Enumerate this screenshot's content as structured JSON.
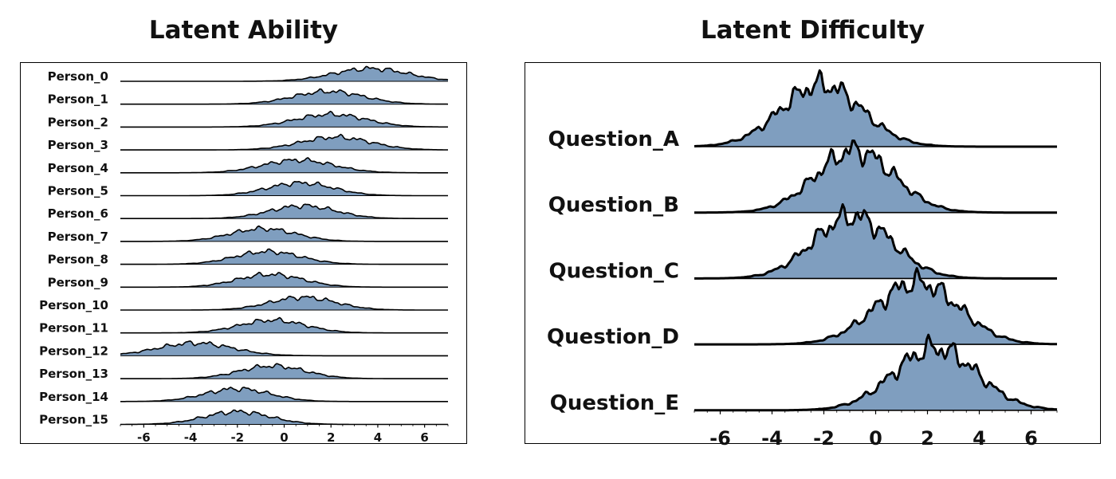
{
  "charts": {
    "left_title": "Latent Ability",
    "right_title": "Latent Difficulty"
  },
  "fill_color": "#7f9ebf",
  "line_color": "#000000",
  "chart_data": [
    {
      "type": "area",
      "subtype": "ridgeline",
      "title": "Latent Ability",
      "xlim": [
        -7,
        7
      ],
      "xticks": [
        -6,
        -4,
        -2,
        0,
        2,
        4,
        6
      ],
      "xlabel": "",
      "ylabel": "",
      "grid": false,
      "series": [
        {
          "name": "Person_0",
          "mean": 3.7,
          "sd": 1.6
        },
        {
          "name": "Person_1",
          "mean": 1.9,
          "sd": 1.5
        },
        {
          "name": "Person_2",
          "mean": 2.0,
          "sd": 1.5
        },
        {
          "name": "Person_3",
          "mean": 2.2,
          "sd": 1.5
        },
        {
          "name": "Person_4",
          "mean": 0.6,
          "sd": 1.5
        },
        {
          "name": "Person_5",
          "mean": 0.7,
          "sd": 1.4
        },
        {
          "name": "Person_6",
          "mean": 0.8,
          "sd": 1.4
        },
        {
          "name": "Person_7",
          "mean": -0.9,
          "sd": 1.4
        },
        {
          "name": "Person_8",
          "mean": -0.7,
          "sd": 1.4
        },
        {
          "name": "Person_9",
          "mean": -0.6,
          "sd": 1.4
        },
        {
          "name": "Person_10",
          "mean": 0.8,
          "sd": 1.4
        },
        {
          "name": "Person_11",
          "mean": -0.5,
          "sd": 1.4
        },
        {
          "name": "Person_12",
          "mean": -3.8,
          "sd": 1.6
        },
        {
          "name": "Person_13",
          "mean": -0.5,
          "sd": 1.4
        },
        {
          "name": "Person_14",
          "mean": -2.0,
          "sd": 1.4
        },
        {
          "name": "Person_15",
          "mean": -2.0,
          "sd": 1.4
        }
      ]
    },
    {
      "type": "area",
      "subtype": "ridgeline",
      "title": "Latent Difficulty",
      "xlim": [
        -7,
        7
      ],
      "xticks": [
        -6,
        -4,
        -2,
        0,
        2,
        4,
        6
      ],
      "xlabel": "",
      "ylabel": "",
      "grid": false,
      "series": [
        {
          "name": "Question_A",
          "mean": -2.1,
          "sd": 1.55
        },
        {
          "name": "Question_B",
          "mean": -0.8,
          "sd": 1.5
        },
        {
          "name": "Question_C",
          "mean": -0.9,
          "sd": 1.5
        },
        {
          "name": "Question_D",
          "mean": 1.6,
          "sd": 1.6
        },
        {
          "name": "Question_E",
          "mean": 2.3,
          "sd": 1.6
        }
      ]
    }
  ]
}
